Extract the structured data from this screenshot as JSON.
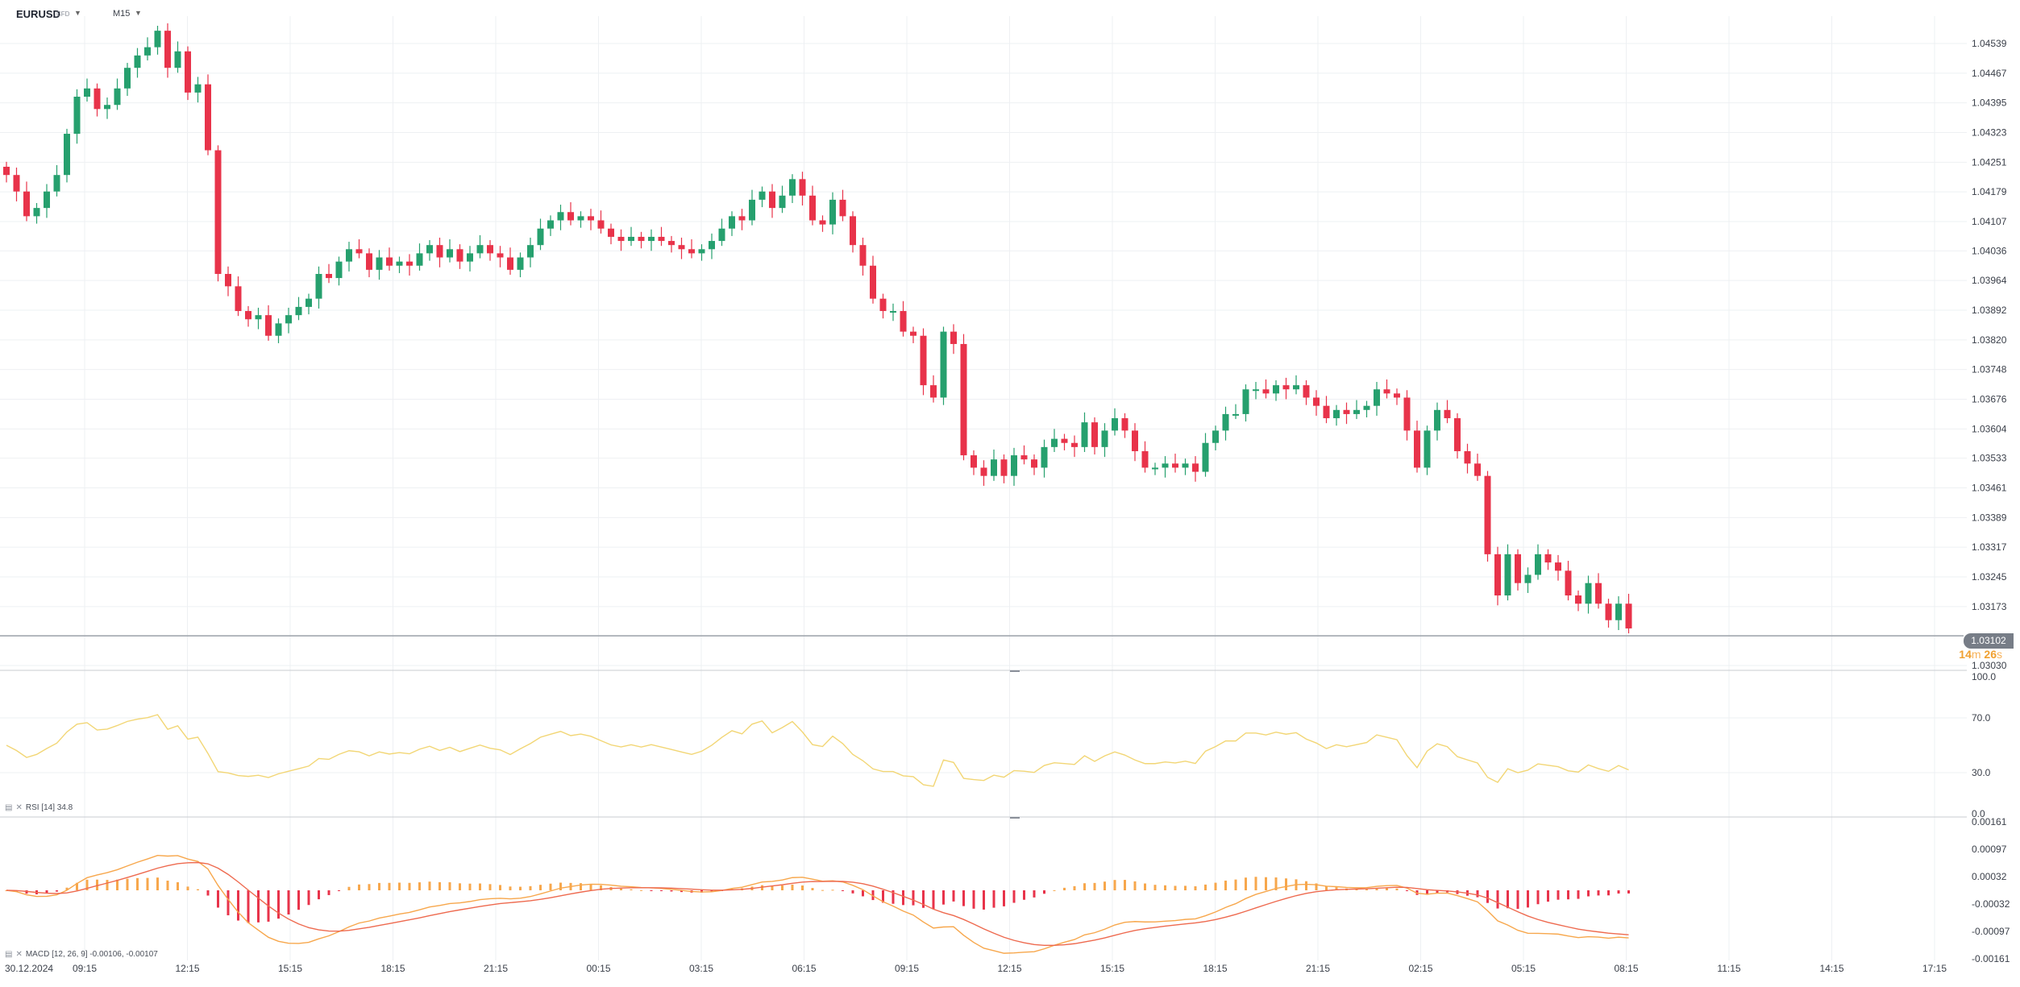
{
  "toolbar": {
    "symbol": "EURUSD",
    "symbol_sub": "CFD",
    "timeframe": "M15"
  },
  "countdown": {
    "minutes": "14",
    "min_unit": "m",
    "seconds": "26",
    "sec_unit": "s"
  },
  "colors": {
    "up": "#26a06e",
    "down": "#e8334a",
    "rsi": "#f2d675",
    "macd_line": "#f7a74c",
    "signal_line": "#ee6a4f",
    "hist_pos": "#f7a74c",
    "hist_neg": "#e8334a",
    "grid": "#eef0f3",
    "axis_text": "#3a3f49"
  },
  "chart_data": [
    {
      "type": "candlestick",
      "name": "EURUSD",
      "timeframe": "M15",
      "ylim": [
        1.0303,
        1.04539
      ],
      "y_ticks": [
        "1.04539",
        "1.04467",
        "1.04395",
        "1.04323",
        "1.04251",
        "1.04179",
        "1.04107",
        "1.04036",
        "1.03964",
        "1.03892",
        "1.03820",
        "1.03748",
        "1.03676",
        "1.03604",
        "1.03533",
        "1.03461",
        "1.03389",
        "1.03317",
        "1.03245",
        "1.03173",
        "1.03030"
      ],
      "last_price": "1.03102",
      "x_start_label": "30.12.2024",
      "x_ticks": [
        "09:15",
        "12:15",
        "15:15",
        "18:15",
        "21:15",
        "00:15",
        "03:15",
        "06:15",
        "09:15",
        "12:15",
        "15:15",
        "18:15",
        "21:15",
        "02:15",
        "05:15",
        "08:15",
        "11:15",
        "14:15",
        "17:15"
      ],
      "closes": [
        1.0422,
        1.0418,
        1.0412,
        1.0414,
        1.0418,
        1.0422,
        1.0432,
        1.0441,
        1.0443,
        1.0438,
        1.0439,
        1.0443,
        1.0448,
        1.0451,
        1.0453,
        1.0457,
        1.0448,
        1.0452,
        1.0442,
        1.0444,
        1.0428,
        1.0398,
        1.0395,
        1.0389,
        1.0387,
        1.0388,
        1.0383,
        1.0386,
        1.0388,
        1.039,
        1.0392,
        1.0398,
        1.0397,
        1.0401,
        1.0404,
        1.0403,
        1.0399,
        1.0402,
        1.04,
        1.0401,
        1.04,
        1.0403,
        1.0405,
        1.0402,
        1.0404,
        1.0401,
        1.0403,
        1.0405,
        1.0403,
        1.0402,
        1.0399,
        1.0402,
        1.0405,
        1.0409,
        1.0411,
        1.0413,
        1.0411,
        1.0412,
        1.0411,
        1.0409,
        1.0407,
        1.0406,
        1.0407,
        1.0406,
        1.0407,
        1.0406,
        1.0405,
        1.0404,
        1.0403,
        1.0404,
        1.0406,
        1.0409,
        1.0412,
        1.0411,
        1.0416,
        1.0418,
        1.0414,
        1.0417,
        1.0421,
        1.0417,
        1.0411,
        1.041,
        1.0416,
        1.0412,
        1.0405,
        1.04,
        1.0392,
        1.0389,
        1.0389,
        1.0384,
        1.0383,
        1.0371,
        1.0368,
        1.0384,
        1.0381,
        1.0354,
        1.0351,
        1.0349,
        1.0353,
        1.0349,
        1.0354,
        1.0353,
        1.0351,
        1.0356,
        1.0358,
        1.0357,
        1.0356,
        1.0362,
        1.0356,
        1.036,
        1.0363,
        1.036,
        1.0355,
        1.0351,
        1.0351,
        1.0352,
        1.0351,
        1.0352,
        1.035,
        1.0357,
        1.036,
        1.0364,
        1.0364,
        1.037,
        1.037,
        1.0369,
        1.0371,
        1.037,
        1.0371,
        1.0368,
        1.0366,
        1.0363,
        1.0365,
        1.0364,
        1.0365,
        1.0366,
        1.037,
        1.0369,
        1.0368,
        1.036,
        1.0351,
        1.036,
        1.0365,
        1.0363,
        1.0355,
        1.0352,
        1.0349,
        1.033,
        1.032,
        1.033,
        1.0323,
        1.0325,
        1.033,
        1.0328,
        1.0326,
        1.032,
        1.0318,
        1.0323,
        1.0318,
        1.0314,
        1.0318,
        1.0312
      ],
      "rsi": {
        "label": "RSI",
        "params": "[14]",
        "value": "34.8",
        "ylim": [
          0,
          100
        ],
        "y_ticks": [
          "100.0",
          "70.0",
          "30.0",
          "0.0"
        ]
      },
      "macd": {
        "label": "MACD",
        "params": "[12, 26, 9]",
        "macd_value": "-0.00106,",
        "signal_value": "-0.00107",
        "ylim": [
          -0.00161,
          0.00161
        ],
        "y_ticks": [
          "0.00161",
          "0.00097",
          "0.00032",
          "-0.00032",
          "-0.00097",
          "-0.00161"
        ]
      }
    }
  ]
}
